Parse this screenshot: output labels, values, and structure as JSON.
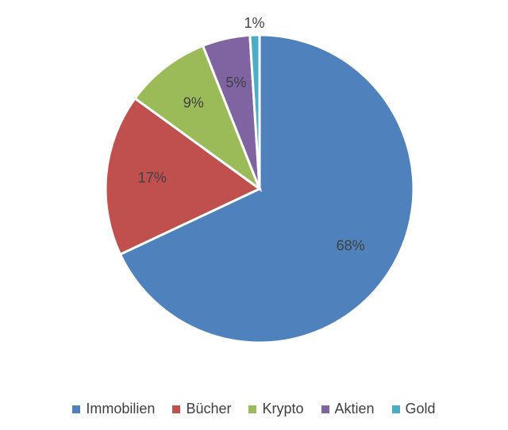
{
  "chart_data": {
    "type": "pie",
    "categories": [
      "Immobilien",
      "Bücher",
      "Krypto",
      "Aktien",
      "Gold"
    ],
    "values": [
      68,
      17,
      9,
      5,
      1
    ],
    "value_labels": [
      "68%",
      "17%",
      "9%",
      "5%",
      "1%"
    ],
    "colors": [
      "#4f81bd",
      "#c0504d",
      "#9bbb59",
      "#8064a2",
      "#4bacc6"
    ],
    "legend": "bottom"
  }
}
